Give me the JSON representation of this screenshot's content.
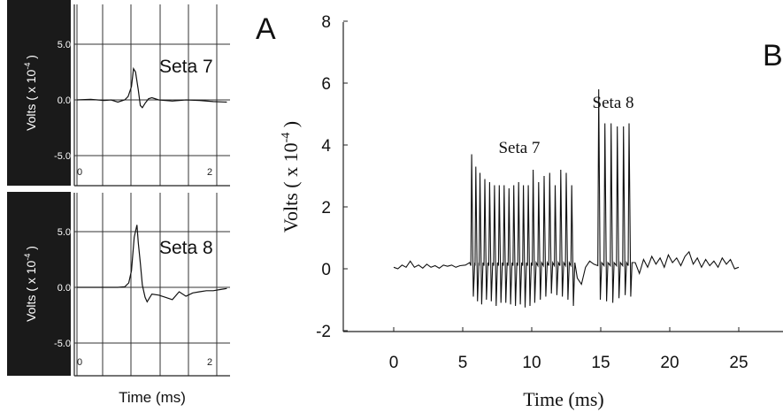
{
  "panel_letters": {
    "a": "A",
    "b": "B"
  },
  "chart_data": [
    {
      "id": "A-top",
      "type": "line",
      "series_label": "Seta 7",
      "ylabel_prefix": "Volts ( x 10",
      "ylabel_exp": "-4",
      "ylabel_suffix": ")",
      "xlabel": "",
      "ylim": [
        -8.5,
        8.5
      ],
      "xlim": [
        0,
        2.3
      ],
      "yticks": [
        "5.0",
        "0.0",
        "-5.0"
      ],
      "ytick_values": [
        5,
        0,
        -5
      ],
      "xticks": [
        "0",
        "2"
      ],
      "xtick_values": [
        0,
        2
      ],
      "grid": true,
      "x": [
        0,
        0.2,
        0.4,
        0.5,
        0.6,
        0.7,
        0.75,
        0.8,
        0.83,
        0.86,
        0.9,
        0.93,
        0.96,
        1.0,
        1.05,
        1.1,
        1.2,
        1.4,
        1.6,
        1.8,
        2.0,
        2.2
      ],
      "y": [
        0,
        0.05,
        -0.05,
        0,
        -0.2,
        0,
        0.3,
        1.2,
        2.8,
        2.5,
        0.9,
        -0.5,
        -0.7,
        -0.3,
        0.1,
        0.2,
        0,
        -0.1,
        0,
        -0.05,
        -0.15,
        -0.2
      ]
    },
    {
      "id": "A-bottom",
      "type": "line",
      "series_label": "Seta 8",
      "ylabel_prefix": "Volts ( x 10",
      "ylabel_exp": "-4",
      "ylabel_suffix": ")",
      "xlabel": "Time (ms)",
      "ylim": [
        -8.0,
        8.0
      ],
      "xlim": [
        0,
        2.3
      ],
      "yticks": [
        "5.0",
        "0.0",
        "-5.0"
      ],
      "ytick_values": [
        5,
        0,
        -5
      ],
      "xticks": [
        "0",
        "2"
      ],
      "xtick_values": [
        0,
        2
      ],
      "grid": true,
      "x": [
        0,
        0.2,
        0.4,
        0.6,
        0.7,
        0.72,
        0.76,
        0.8,
        0.84,
        0.88,
        0.9,
        0.93,
        0.96,
        1.0,
        1.03,
        1.06,
        1.1,
        1.2,
        1.3,
        1.4,
        1.5,
        1.6,
        1.7,
        1.8,
        1.9,
        2.0,
        2.1,
        2.2
      ],
      "y": [
        0,
        0,
        0,
        0,
        0.05,
        0.15,
        0.4,
        1.5,
        4.5,
        5.6,
        4.0,
        2.2,
        0.2,
        -0.9,
        -1.3,
        -1.0,
        -0.6,
        -0.7,
        -0.9,
        -1.1,
        -0.4,
        -0.8,
        -0.5,
        -0.4,
        -0.3,
        -0.3,
        -0.2,
        -0.1
      ]
    },
    {
      "id": "B",
      "type": "line",
      "ylabel_prefix": "Volts ( x 10",
      "ylabel_exp": "-4",
      "ylabel_suffix": ")",
      "xlabel": "Time (ms)",
      "xlim": [
        -2.5,
        28
      ],
      "ylim": [
        -2,
        8
      ],
      "yticks": [
        "-2",
        "0",
        "2",
        "4",
        "6",
        "8"
      ],
      "ytick_values": [
        -2,
        0,
        2,
        4,
        6,
        8
      ],
      "xticks": [
        "0",
        "5",
        "10",
        "15",
        "20",
        "25"
      ],
      "xtick_values": [
        0,
        5,
        10,
        15,
        20,
        25
      ],
      "grid": false,
      "annotations": [
        {
          "text": "Seta 7",
          "x": 9.1,
          "y": 3.75
        },
        {
          "text": "Seta 8",
          "x": 15.9,
          "y": 5.2
        }
      ],
      "baseline": [
        [
          0,
          0.05
        ],
        [
          0.3,
          0
        ],
        [
          0.6,
          0.12
        ],
        [
          0.9,
          0.05
        ],
        [
          1.2,
          0.25
        ],
        [
          1.5,
          0.05
        ],
        [
          1.8,
          0.12
        ],
        [
          2.1,
          0.02
        ],
        [
          2.4,
          0.15
        ],
        [
          2.7,
          0.05
        ],
        [
          3.0,
          0.1
        ],
        [
          3.3,
          0.02
        ],
        [
          3.6,
          0.12
        ],
        [
          3.9,
          0.08
        ],
        [
          4.2,
          0.12
        ],
        [
          4.5,
          0.05
        ],
        [
          4.8,
          0.1
        ],
        [
          5.2,
          0.12
        ],
        [
          5.5,
          0.2
        ]
      ],
      "seta7_bursts": [
        [
          5.65,
          3.7,
          -0.9
        ],
        [
          5.95,
          3.3,
          -1.05
        ],
        [
          6.25,
          3.1,
          -1.15
        ],
        [
          6.6,
          2.9,
          -1.0
        ],
        [
          6.95,
          2.8,
          -1.05
        ],
        [
          7.3,
          2.7,
          -1.2
        ],
        [
          7.65,
          2.7,
          -1.1
        ],
        [
          8.0,
          2.7,
          -1.1
        ],
        [
          8.35,
          2.6,
          -1.15
        ],
        [
          8.7,
          2.7,
          -1.2
        ],
        [
          9.05,
          2.8,
          -1.15
        ],
        [
          9.4,
          2.7,
          -1.25
        ],
        [
          9.75,
          2.7,
          -1.2
        ],
        [
          10.1,
          3.2,
          -1.1
        ],
        [
          10.5,
          2.8,
          -1.0
        ],
        [
          10.9,
          3.0,
          -0.9
        ],
        [
          11.3,
          3.1,
          -0.8
        ],
        [
          11.7,
          2.7,
          -0.85
        ],
        [
          12.1,
          3.2,
          -0.9
        ],
        [
          12.5,
          3.1,
          -1.0
        ],
        [
          12.9,
          2.7,
          -1.2
        ]
      ],
      "seta8_bursts": [
        [
          14.85,
          5.8,
          -1.0
        ],
        [
          15.3,
          4.7,
          -1.05
        ],
        [
          15.75,
          4.7,
          -1.1
        ],
        [
          16.2,
          4.6,
          -0.95
        ],
        [
          16.65,
          4.6,
          -0.85
        ],
        [
          17.05,
          4.7,
          -0.9
        ]
      ],
      "middle_gap": [
        [
          13.3,
          -0.3
        ],
        [
          13.6,
          -0.5
        ],
        [
          13.9,
          0.05
        ],
        [
          14.2,
          0.25
        ],
        [
          14.5,
          0.15
        ]
      ],
      "tail": [
        [
          17.5,
          0.2
        ],
        [
          17.8,
          -0.15
        ],
        [
          18.1,
          0.3
        ],
        [
          18.4,
          0.05
        ],
        [
          18.7,
          0.4
        ],
        [
          19.0,
          0.15
        ],
        [
          19.3,
          0.35
        ],
        [
          19.6,
          0.05
        ],
        [
          19.9,
          0.45
        ],
        [
          20.2,
          0.2
        ],
        [
          20.5,
          0.35
        ],
        [
          20.8,
          0.1
        ],
        [
          21.1,
          0.4
        ],
        [
          21.4,
          0.55
        ],
        [
          21.7,
          0.15
        ],
        [
          22.0,
          0.35
        ],
        [
          22.3,
          0.05
        ],
        [
          22.6,
          0.3
        ],
        [
          22.9,
          0.1
        ],
        [
          23.2,
          0.25
        ],
        [
          23.5,
          0.05
        ],
        [
          23.8,
          0.35
        ],
        [
          24.1,
          0.15
        ],
        [
          24.4,
          0.3
        ],
        [
          24.7,
          0.0
        ],
        [
          25.0,
          0.05
        ]
      ]
    }
  ]
}
